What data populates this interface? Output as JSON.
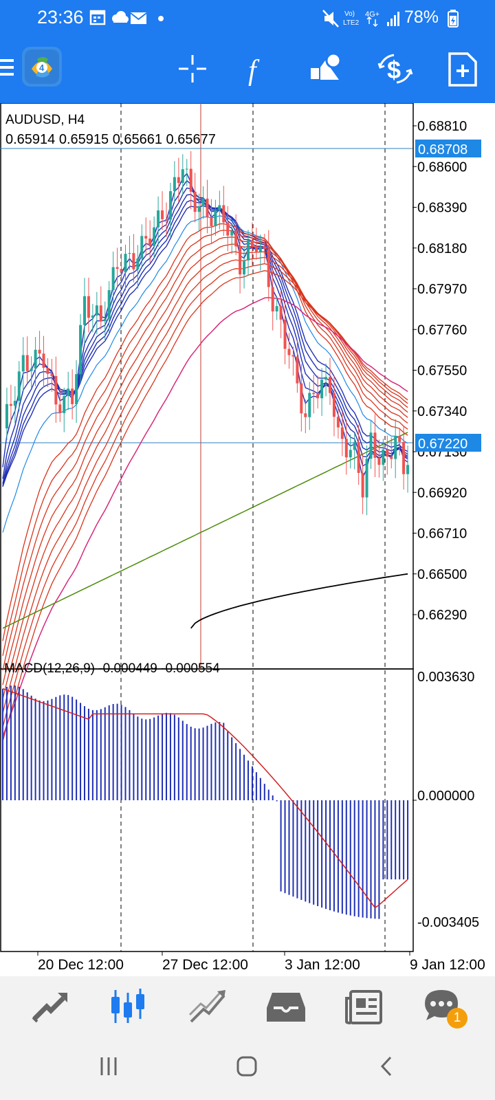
{
  "status_bar": {
    "time": "23:36",
    "network_label_top": "Vo)",
    "network_label_bottom": "LTE2",
    "signal_label": "4G+",
    "battery": "78%"
  },
  "toolbar": {
    "icons": [
      "menu-icon",
      "metatrader-logo",
      "crosshair-icon",
      "indicators-icon",
      "objects-icon",
      "trade-icon",
      "new-order-icon"
    ],
    "color": "#1E7BF0"
  },
  "chart": {
    "symbol": "AUDUSD, H4",
    "ohlc": "0.65914 0.65915 0.65661 0.65677",
    "price_labels": [
      "0.68810",
      "0.68600",
      "0.68390",
      "0.68180",
      "0.67970",
      "0.67760",
      "0.67550",
      "0.67340",
      "0.67130",
      "0.66920",
      "0.66710",
      "0.66500",
      "0.66290"
    ],
    "current_price_top": "0.68708",
    "current_price_bottom": "0.67220",
    "date_labels": [
      "20 Dec 12:00",
      "27 Dec 12:00",
      "3 Jan 12:00",
      "9 Jan 12:00"
    ]
  },
  "macd": {
    "label": "MACD(12,26,9) -0.000449 -0.000554",
    "scale_top": "0.003630",
    "scale_zero": "0.000000",
    "scale_bottom": "-0.003405"
  },
  "chart_data": {
    "type": "candlestick",
    "symbol": "AUDUSD",
    "timeframe": "H4",
    "ylim": [
      0.6619,
      0.6892
    ],
    "macd_ylim": [
      -0.003405,
      0.00363
    ]
  },
  "bottom_nav": {
    "items": [
      "quotes-icon",
      "charts-icon",
      "trade-icon",
      "history-icon",
      "news-icon",
      "messages-icon"
    ],
    "badge": "1"
  }
}
